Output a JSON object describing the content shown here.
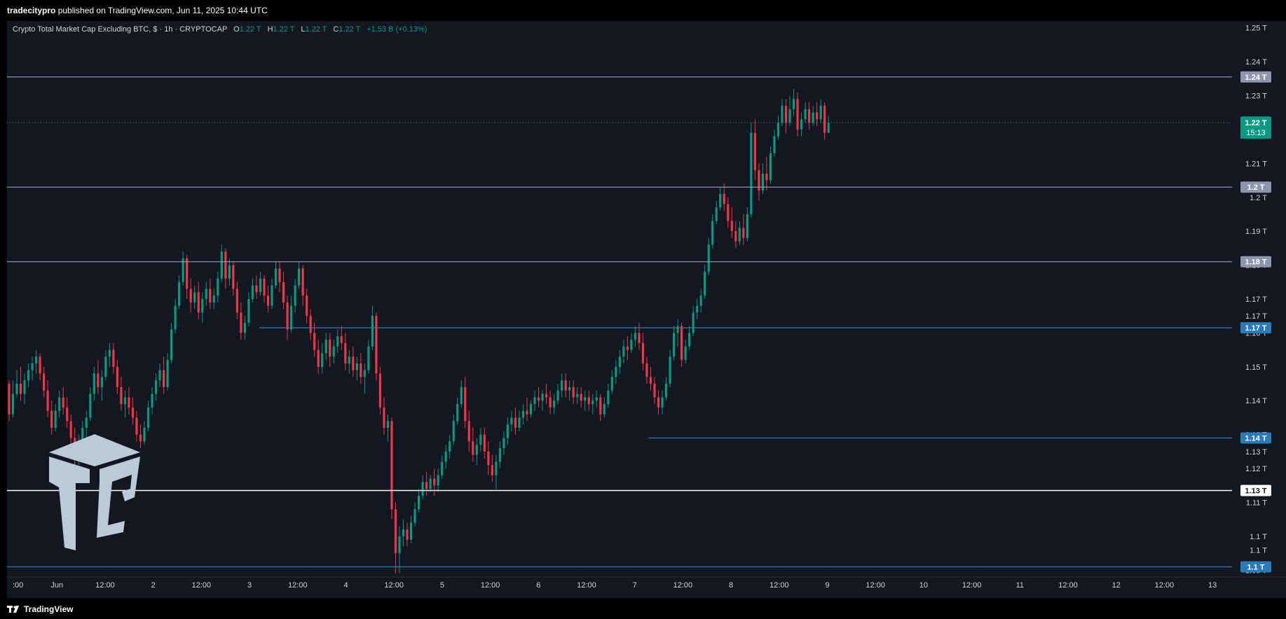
{
  "header": {
    "publisher": "tradecitypro",
    "published_text": " published on TradingView.com, Jun 11, 2025 10:44 UTC"
  },
  "legend": {
    "symbol": "Crypto Total Market Cap Excluding BTC, $ · 1h · CRYPTOCAP",
    "o_label": "O",
    "o_val": "1.22 T",
    "h_label": "H",
    "h_val": "1.22 T",
    "l_label": "L",
    "l_val": "1.22 T",
    "c_label": "C",
    "c_val": "1.22 T",
    "change": "+1.53 B (+0.13%)"
  },
  "footer": {
    "brand": "TradingView"
  },
  "colors": {
    "background": "#131722",
    "grid": "#1e222d",
    "up": "#089981",
    "down": "#f23645",
    "level_gray": "#8c97ab",
    "level_blue": "#2a7ab8",
    "level_white": "#ffffff",
    "price_tag": "#089981",
    "axis_text": "#d1d4dc"
  },
  "icons": {
    "brand_logo": "tradecity-cube-logo",
    "tv_logo": "tradingview-icon"
  },
  "chart_data": {
    "type": "candlestick",
    "title": "Crypto Total Market Cap Excluding BTC, $ · 1h · CRYPTOCAP",
    "xlabel": "",
    "ylabel": "",
    "ylim": [
      1.088,
      1.252
    ],
    "y_unit": "T",
    "grid": false,
    "x_ticks": [
      ":00",
      "Jun",
      "12:00",
      "2",
      "12:00",
      "3",
      "12:00",
      "4",
      "12:00",
      "5",
      "12:00",
      "6",
      "12:00",
      "7",
      "12:00",
      "8",
      "12:00",
      "9",
      "12:00",
      "10",
      "12:00",
      "11",
      "12:00",
      "12",
      "12:00",
      "13"
    ],
    "y_ticks": [
      "1.25 T",
      "1.24 T",
      "1.23 T",
      "1.22 T",
      "1.21 T",
      "1.2 T",
      "1.19 T",
      "1.18 T",
      "1.17 T",
      "1.17 T",
      "1.16 T",
      "1.15 T",
      "1.14 T",
      "1.13 T",
      "1.13 T",
      "1.12 T",
      "1.11 T",
      "1.1 T",
      "1.1 T",
      "1.09 T"
    ],
    "y_tick_values": [
      1.25,
      1.24,
      1.23,
      1.22,
      1.21,
      1.2,
      1.19,
      1.18,
      1.17,
      1.165,
      1.16,
      1.15,
      1.14,
      1.13,
      1.125,
      1.12,
      1.11,
      1.1,
      1.096,
      1.09
    ],
    "horizontal_levels": [
      {
        "value": 1.2355,
        "label": "1.24 T",
        "color": "#8c97ab",
        "span": "full"
      },
      {
        "value": 1.203,
        "label": "1.2 T",
        "color": "#8c97ab",
        "span": "full"
      },
      {
        "value": 1.181,
        "label": "1.18 T",
        "color": "#8c97ab",
        "span": "full"
      },
      {
        "value": 1.1615,
        "label": "1.17 T",
        "color": "#2a7ab8",
        "span": "from-day-3"
      },
      {
        "value": 1.129,
        "label": "1.14 T",
        "color": "#2a7ab8",
        "span": "from-day-7"
      },
      {
        "value": 1.1135,
        "label": "1.13 T",
        "color": "#ffffff",
        "span": "full"
      },
      {
        "value": 1.091,
        "label": "1.1 T",
        "color": "#2a7ab8",
        "span": "full"
      }
    ],
    "last_price": {
      "value": 1.222,
      "label": "1.22 T",
      "countdown": "15:13"
    },
    "candles": [
      [
        1.145,
        1.146,
        1.134,
        1.136
      ],
      [
        1.136,
        1.146,
        1.135,
        1.142
      ],
      [
        1.142,
        1.149,
        1.141,
        1.145
      ],
      [
        1.145,
        1.15,
        1.14,
        1.142
      ],
      [
        1.142,
        1.148,
        1.139,
        1.146
      ],
      [
        1.146,
        1.151,
        1.144,
        1.149
      ],
      [
        1.149,
        1.153,
        1.146,
        1.151
      ],
      [
        1.151,
        1.155,
        1.148,
        1.153
      ],
      [
        1.153,
        1.154,
        1.146,
        1.148
      ],
      [
        1.148,
        1.15,
        1.141,
        1.143
      ],
      [
        1.143,
        1.146,
        1.135,
        1.137
      ],
      [
        1.137,
        1.14,
        1.13,
        1.132
      ],
      [
        1.132,
        1.139,
        1.131,
        1.137
      ],
      [
        1.137,
        1.143,
        1.135,
        1.141
      ],
      [
        1.141,
        1.144,
        1.136,
        1.138
      ],
      [
        1.138,
        1.141,
        1.132,
        1.134
      ],
      [
        1.134,
        1.136,
        1.127,
        1.129
      ],
      [
        1.129,
        1.132,
        1.12,
        1.124
      ],
      [
        1.124,
        1.13,
        1.121,
        1.128
      ],
      [
        1.128,
        1.134,
        1.126,
        1.132
      ],
      [
        1.132,
        1.137,
        1.129,
        1.135
      ],
      [
        1.135,
        1.144,
        1.134,
        1.142
      ],
      [
        1.142,
        1.15,
        1.14,
        1.148
      ],
      [
        1.148,
        1.152,
        1.142,
        1.144
      ],
      [
        1.144,
        1.149,
        1.14,
        1.147
      ],
      [
        1.147,
        1.155,
        1.146,
        1.153
      ],
      [
        1.153,
        1.157,
        1.15,
        1.155
      ],
      [
        1.155,
        1.157,
        1.148,
        1.15
      ],
      [
        1.15,
        1.152,
        1.142,
        1.144
      ],
      [
        1.144,
        1.147,
        1.137,
        1.139
      ],
      [
        1.139,
        1.143,
        1.135,
        1.141
      ],
      [
        1.141,
        1.144,
        1.136,
        1.138
      ],
      [
        1.138,
        1.141,
        1.133,
        1.135
      ],
      [
        1.135,
        1.137,
        1.128,
        1.13
      ],
      [
        1.13,
        1.133,
        1.126,
        1.128
      ],
      [
        1.128,
        1.134,
        1.127,
        1.132
      ],
      [
        1.132,
        1.14,
        1.131,
        1.138
      ],
      [
        1.138,
        1.144,
        1.136,
        1.142
      ],
      [
        1.142,
        1.148,
        1.14,
        1.146
      ],
      [
        1.146,
        1.151,
        1.144,
        1.149
      ],
      [
        1.149,
        1.153,
        1.142,
        1.144
      ],
      [
        1.144,
        1.154,
        1.143,
        1.152
      ],
      [
        1.152,
        1.163,
        1.151,
        1.161
      ],
      [
        1.161,
        1.17,
        1.16,
        1.168
      ],
      [
        1.168,
        1.177,
        1.167,
        1.175
      ],
      [
        1.175,
        1.184,
        1.174,
        1.182
      ],
      [
        1.182,
        1.183,
        1.17,
        1.173
      ],
      [
        1.173,
        1.176,
        1.166,
        1.169
      ],
      [
        1.169,
        1.174,
        1.167,
        1.172
      ],
      [
        1.172,
        1.175,
        1.164,
        1.166
      ],
      [
        1.166,
        1.172,
        1.163,
        1.17
      ],
      [
        1.17,
        1.175,
        1.168,
        1.173
      ],
      [
        1.173,
        1.176,
        1.167,
        1.169
      ],
      [
        1.169,
        1.173,
        1.167,
        1.171
      ],
      [
        1.171,
        1.178,
        1.169,
        1.176
      ],
      [
        1.176,
        1.186,
        1.175,
        1.184
      ],
      [
        1.184,
        1.185,
        1.173,
        1.176
      ],
      [
        1.176,
        1.182,
        1.174,
        1.18
      ],
      [
        1.18,
        1.181,
        1.171,
        1.173
      ],
      [
        1.173,
        1.175,
        1.164,
        1.166
      ],
      [
        1.166,
        1.169,
        1.158,
        1.16
      ],
      [
        1.16,
        1.165,
        1.158,
        1.163
      ],
      [
        1.163,
        1.172,
        1.162,
        1.17
      ],
      [
        1.17,
        1.176,
        1.169,
        1.174
      ],
      [
        1.174,
        1.177,
        1.17,
        1.172
      ],
      [
        1.172,
        1.178,
        1.171,
        1.176
      ],
      [
        1.176,
        1.177,
        1.169,
        1.171
      ],
      [
        1.171,
        1.174,
        1.166,
        1.168
      ],
      [
        1.168,
        1.176,
        1.167,
        1.174
      ],
      [
        1.174,
        1.181,
        1.173,
        1.179
      ],
      [
        1.179,
        1.181,
        1.172,
        1.175
      ],
      [
        1.175,
        1.178,
        1.167,
        1.169
      ],
      [
        1.169,
        1.171,
        1.158,
        1.161
      ],
      [
        1.161,
        1.171,
        1.16,
        1.168
      ],
      [
        1.168,
        1.176,
        1.166,
        1.174
      ],
      [
        1.174,
        1.181,
        1.173,
        1.179
      ],
      [
        1.179,
        1.18,
        1.168,
        1.171
      ],
      [
        1.171,
        1.173,
        1.163,
        1.165
      ],
      [
        1.165,
        1.167,
        1.158,
        1.16
      ],
      [
        1.16,
        1.163,
        1.153,
        1.155
      ],
      [
        1.155,
        1.158,
        1.148,
        1.15
      ],
      [
        1.15,
        1.157,
        1.148,
        1.154
      ],
      [
        1.154,
        1.16,
        1.152,
        1.158
      ],
      [
        1.158,
        1.16,
        1.15,
        1.153
      ],
      [
        1.153,
        1.158,
        1.151,
        1.156
      ],
      [
        1.156,
        1.161,
        1.154,
        1.159
      ],
      [
        1.159,
        1.162,
        1.155,
        1.157
      ],
      [
        1.157,
        1.16,
        1.149,
        1.151
      ],
      [
        1.151,
        1.155,
        1.148,
        1.153
      ],
      [
        1.153,
        1.156,
        1.147,
        1.149
      ],
      [
        1.149,
        1.153,
        1.146,
        1.151
      ],
      [
        1.151,
        1.154,
        1.145,
        1.147
      ],
      [
        1.147,
        1.151,
        1.142,
        1.149
      ],
      [
        1.149,
        1.158,
        1.148,
        1.156
      ],
      [
        1.156,
        1.168,
        1.155,
        1.165
      ],
      [
        1.165,
        1.166,
        1.146,
        1.148
      ],
      [
        1.148,
        1.15,
        1.136,
        1.138
      ],
      [
        1.138,
        1.141,
        1.13,
        1.132
      ],
      [
        1.132,
        1.136,
        1.128,
        1.134
      ],
      [
        1.134,
        1.135,
        1.105,
        1.108
      ],
      [
        1.108,
        1.11,
        1.089,
        1.095
      ],
      [
        1.095,
        1.103,
        1.089,
        1.1
      ],
      [
        1.1,
        1.105,
        1.097,
        1.102
      ],
      [
        1.102,
        1.104,
        1.097,
        1.099
      ],
      [
        1.099,
        1.106,
        1.098,
        1.104
      ],
      [
        1.104,
        1.11,
        1.103,
        1.108
      ],
      [
        1.108,
        1.114,
        1.107,
        1.112
      ],
      [
        1.112,
        1.118,
        1.111,
        1.116
      ],
      [
        1.116,
        1.119,
        1.112,
        1.114
      ],
      [
        1.114,
        1.118,
        1.113,
        1.117
      ],
      [
        1.117,
        1.12,
        1.112,
        1.115
      ],
      [
        1.115,
        1.12,
        1.113,
        1.118
      ],
      [
        1.118,
        1.124,
        1.117,
        1.122
      ],
      [
        1.122,
        1.127,
        1.12,
        1.125
      ],
      [
        1.125,
        1.13,
        1.123,
        1.128
      ],
      [
        1.128,
        1.136,
        1.127,
        1.134
      ],
      [
        1.134,
        1.141,
        1.133,
        1.139
      ],
      [
        1.139,
        1.146,
        1.138,
        1.144
      ],
      [
        1.144,
        1.147,
        1.132,
        1.134
      ],
      [
        1.134,
        1.137,
        1.125,
        1.128
      ],
      [
        1.128,
        1.132,
        1.122,
        1.124
      ],
      [
        1.124,
        1.129,
        1.121,
        1.127
      ],
      [
        1.127,
        1.132,
        1.125,
        1.13
      ],
      [
        1.13,
        1.132,
        1.123,
        1.125
      ],
      [
        1.125,
        1.128,
        1.118,
        1.121
      ],
      [
        1.121,
        1.124,
        1.116,
        1.118
      ],
      [
        1.118,
        1.124,
        1.114,
        1.122
      ],
      [
        1.122,
        1.128,
        1.12,
        1.126
      ],
      [
        1.126,
        1.131,
        1.124,
        1.129
      ],
      [
        1.129,
        1.135,
        1.127,
        1.133
      ],
      [
        1.133,
        1.137,
        1.131,
        1.135
      ],
      [
        1.135,
        1.138,
        1.13,
        1.132
      ],
      [
        1.132,
        1.137,
        1.131,
        1.135
      ],
      [
        1.135,
        1.139,
        1.133,
        1.137
      ],
      [
        1.137,
        1.141,
        1.134,
        1.136
      ],
      [
        1.136,
        1.14,
        1.135,
        1.139
      ],
      [
        1.139,
        1.143,
        1.137,
        1.141
      ],
      [
        1.141,
        1.144,
        1.138,
        1.14
      ],
      [
        1.14,
        1.143,
        1.137,
        1.142
      ],
      [
        1.142,
        1.145,
        1.139,
        1.141
      ],
      [
        1.141,
        1.143,
        1.136,
        1.138
      ],
      [
        1.138,
        1.142,
        1.136,
        1.14
      ],
      [
        1.14,
        1.145,
        1.139,
        1.143
      ],
      [
        1.143,
        1.148,
        1.141,
        1.146
      ],
      [
        1.146,
        1.148,
        1.141,
        1.143
      ],
      [
        1.143,
        1.146,
        1.14,
        1.144
      ],
      [
        1.144,
        1.146,
        1.139,
        1.141
      ],
      [
        1.141,
        1.144,
        1.139,
        1.142
      ],
      [
        1.142,
        1.144,
        1.138,
        1.14
      ],
      [
        1.14,
        1.143,
        1.137,
        1.141
      ],
      [
        1.141,
        1.143,
        1.137,
        1.139
      ],
      [
        1.139,
        1.142,
        1.136,
        1.14
      ],
      [
        1.14,
        1.143,
        1.138,
        1.141
      ],
      [
        1.141,
        1.142,
        1.134,
        1.136
      ],
      [
        1.136,
        1.141,
        1.135,
        1.139
      ],
      [
        1.139,
        1.145,
        1.138,
        1.143
      ],
      [
        1.143,
        1.149,
        1.142,
        1.147
      ],
      [
        1.147,
        1.152,
        1.145,
        1.15
      ],
      [
        1.15,
        1.155,
        1.148,
        1.153
      ],
      [
        1.153,
        1.158,
        1.151,
        1.156
      ],
      [
        1.156,
        1.159,
        1.152,
        1.155
      ],
      [
        1.155,
        1.16,
        1.154,
        1.158
      ],
      [
        1.158,
        1.162,
        1.156,
        1.16
      ],
      [
        1.16,
        1.163,
        1.155,
        1.157
      ],
      [
        1.157,
        1.16,
        1.149,
        1.151
      ],
      [
        1.151,
        1.153,
        1.145,
        1.147
      ],
      [
        1.147,
        1.15,
        1.143,
        1.145
      ],
      [
        1.145,
        1.147,
        1.139,
        1.141
      ],
      [
        1.141,
        1.143,
        1.136,
        1.138
      ],
      [
        1.138,
        1.143,
        1.136,
        1.141
      ],
      [
        1.141,
        1.147,
        1.14,
        1.145
      ],
      [
        1.145,
        1.155,
        1.144,
        1.153
      ],
      [
        1.153,
        1.162,
        1.152,
        1.16
      ],
      [
        1.16,
        1.164,
        1.156,
        1.162
      ],
      [
        1.162,
        1.163,
        1.15,
        1.152
      ],
      [
        1.152,
        1.158,
        1.151,
        1.156
      ],
      [
        1.156,
        1.162,
        1.155,
        1.16
      ],
      [
        1.16,
        1.168,
        1.159,
        1.166
      ],
      [
        1.166,
        1.17,
        1.164,
        1.168
      ],
      [
        1.168,
        1.173,
        1.166,
        1.171
      ],
      [
        1.171,
        1.18,
        1.17,
        1.178
      ],
      [
        1.178,
        1.188,
        1.177,
        1.186
      ],
      [
        1.186,
        1.195,
        1.185,
        1.193
      ],
      [
        1.193,
        1.199,
        1.192,
        1.197
      ],
      [
        1.197,
        1.203,
        1.196,
        1.201
      ],
      [
        1.201,
        1.204,
        1.196,
        1.198
      ],
      [
        1.198,
        1.2,
        1.191,
        1.193
      ],
      [
        1.193,
        1.197,
        1.188,
        1.19
      ],
      [
        1.19,
        1.193,
        1.185,
        1.187
      ],
      [
        1.187,
        1.193,
        1.186,
        1.191
      ],
      [
        1.191,
        1.195,
        1.186,
        1.188
      ],
      [
        1.188,
        1.197,
        1.187,
        1.195
      ],
      [
        1.195,
        1.222,
        1.194,
        1.219
      ],
      [
        1.219,
        1.223,
        1.205,
        1.208
      ],
      [
        1.208,
        1.21,
        1.199,
        1.202
      ],
      [
        1.202,
        1.21,
        1.201,
        1.207
      ],
      [
        1.207,
        1.212,
        1.202,
        1.205
      ],
      [
        1.205,
        1.215,
        1.204,
        1.213
      ],
      [
        1.213,
        1.22,
        1.212,
        1.218
      ],
      [
        1.218,
        1.224,
        1.217,
        1.222
      ],
      [
        1.222,
        1.229,
        1.221,
        1.227
      ],
      [
        1.227,
        1.229,
        1.219,
        1.222
      ],
      [
        1.222,
        1.23,
        1.221,
        1.226
      ],
      [
        1.226,
        1.232,
        1.224,
        1.229
      ],
      [
        1.229,
        1.231,
        1.218,
        1.22
      ],
      [
        1.22,
        1.225,
        1.218,
        1.223
      ],
      [
        1.223,
        1.228,
        1.222,
        1.226
      ],
      [
        1.226,
        1.228,
        1.22,
        1.222
      ],
      [
        1.222,
        1.227,
        1.221,
        1.225
      ],
      [
        1.225,
        1.228,
        1.221,
        1.223
      ],
      [
        1.223,
        1.229,
        1.222,
        1.227
      ],
      [
        1.227,
        1.228,
        1.217,
        1.219
      ],
      [
        1.219,
        1.224,
        1.219,
        1.222
      ]
    ]
  }
}
